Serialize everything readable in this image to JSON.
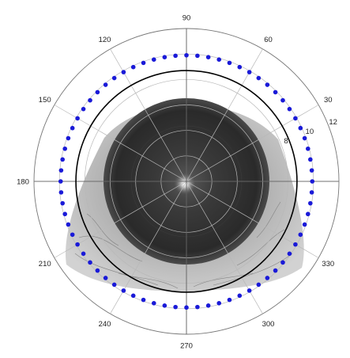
{
  "chart_data": {
    "type": "polar",
    "title": "",
    "angular_ticks": [
      {
        "deg": 0,
        "label": ""
      },
      {
        "deg": 30,
        "label": "30"
      },
      {
        "deg": 60,
        "label": "60"
      },
      {
        "deg": 90,
        "label": "90"
      },
      {
        "deg": 120,
        "label": "120"
      },
      {
        "deg": 150,
        "label": "150"
      },
      {
        "deg": 180,
        "label": "180"
      },
      {
        "deg": 210,
        "label": "210"
      },
      {
        "deg": 240,
        "label": "240"
      },
      {
        "deg": 270,
        "label": "270"
      },
      {
        "deg": 300,
        "label": "300"
      },
      {
        "deg": 330,
        "label": "330"
      }
    ],
    "radial_ticks": [
      2,
      4,
      6,
      8,
      10,
      12
    ],
    "radial_tick_labels": [
      "",
      "",
      "",
      "8",
      "10",
      "12"
    ],
    "r_max": 12,
    "circle_radii": [
      8.7
    ],
    "series": [
      {
        "marker": "dot",
        "color": "#1a1ad8",
        "r": 9.9,
        "theta_deg": [
          0,
          5,
          10,
          15,
          20,
          25,
          30,
          35,
          40,
          45,
          50,
          55,
          60,
          65,
          70,
          75,
          80,
          85,
          90,
          95,
          100,
          105,
          110,
          115,
          120,
          125,
          130,
          135,
          140,
          145,
          150,
          155,
          160,
          165,
          170,
          175,
          180,
          185,
          190,
          195,
          200,
          205,
          210,
          215,
          220,
          225,
          230,
          235,
          240,
          245,
          250,
          255,
          260,
          265,
          270,
          275,
          280,
          285,
          290,
          295,
          300,
          305,
          310,
          315,
          320,
          325,
          330,
          335,
          340,
          345,
          350,
          355
        ]
      }
    ],
    "grid": true,
    "background_image": "cornea-eye-photo"
  }
}
